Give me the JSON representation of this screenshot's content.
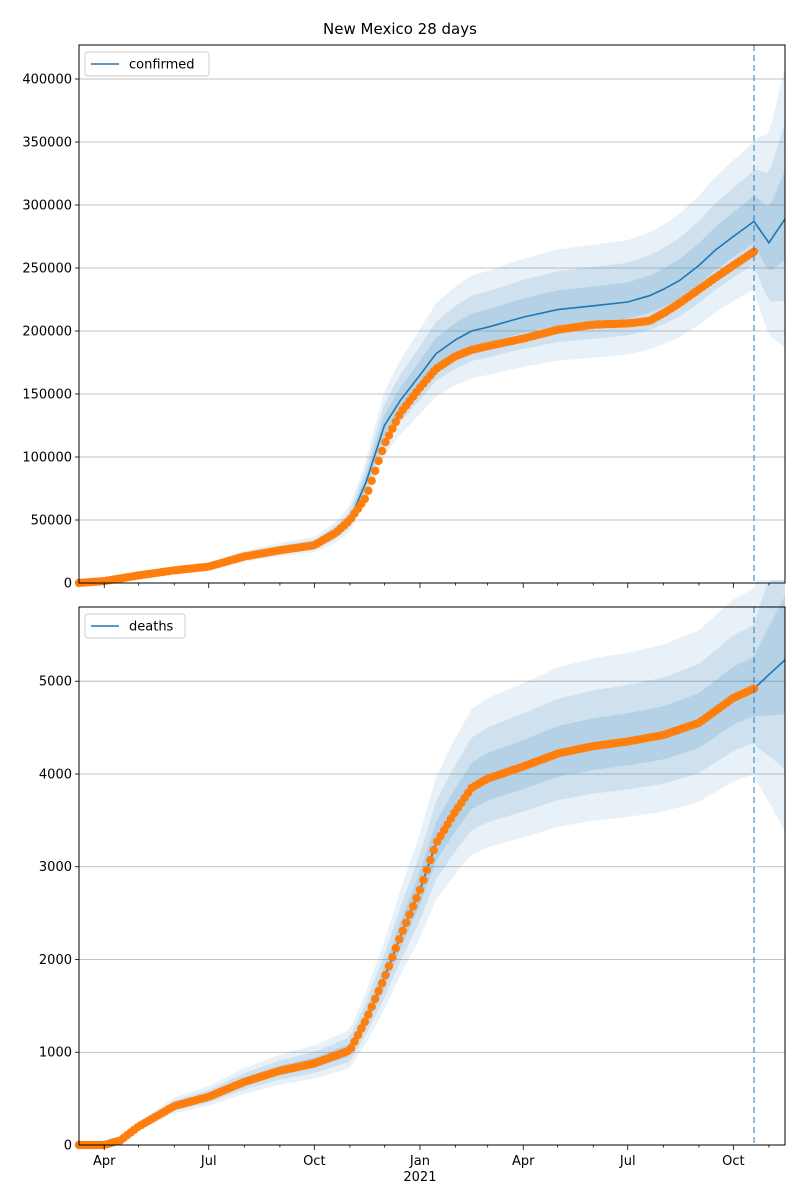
{
  "chart_data": [
    {
      "type": "line",
      "title": "New Mexico 28 days",
      "xlabel": "",
      "ylabel": "",
      "grid": "horizontal",
      "legend": "top-left",
      "ylim": [
        0,
        427000
      ],
      "yticks": [
        0,
        50000,
        100000,
        150000,
        200000,
        250000,
        300000,
        350000,
        400000
      ],
      "ytick_labels": [
        "0",
        "50000",
        "100000",
        "150000",
        "200000",
        "250000",
        "300000",
        "350000",
        "400000"
      ],
      "forecast_start": "2021-10-19",
      "series": [
        {
          "name": "confirmed",
          "kind": "model",
          "color": "#1f77b4",
          "x": [
            "2020-03-10",
            "2020-04-01",
            "2020-05-01",
            "2020-06-01",
            "2020-07-01",
            "2020-08-01",
            "2020-09-01",
            "2020-10-01",
            "2020-10-20",
            "2020-11-01",
            "2020-11-15",
            "2020-12-01",
            "2020-12-15",
            "2021-01-01",
            "2021-01-15",
            "2021-02-01",
            "2021-02-15",
            "2021-03-01",
            "2021-04-01",
            "2021-05-01",
            "2021-06-01",
            "2021-07-01",
            "2021-07-20",
            "2021-08-01",
            "2021-08-15",
            "2021-09-01",
            "2021-09-15",
            "2021-10-01",
            "2021-10-19",
            "2021-11-01",
            "2021-11-15"
          ],
          "y": [
            0,
            1500,
            6000,
            10000,
            13000,
            21000,
            26000,
            30000,
            40000,
            50000,
            80000,
            125000,
            145000,
            165000,
            182000,
            193000,
            200000,
            203000,
            211000,
            217000,
            220000,
            223000,
            228000,
            233000,
            240000,
            252000,
            264000,
            275000,
            287000,
            270000,
            289000
          ]
        },
        {
          "name": "",
          "kind": "observed",
          "color": "#ff7f0e",
          "x": [
            "2020-03-10",
            "2020-04-01",
            "2020-05-01",
            "2020-06-01",
            "2020-07-01",
            "2020-08-01",
            "2020-09-01",
            "2020-10-01",
            "2020-10-20",
            "2020-11-01",
            "2020-11-15",
            "2020-12-01",
            "2020-12-15",
            "2021-01-01",
            "2021-01-15",
            "2021-02-01",
            "2021-02-15",
            "2021-03-01",
            "2021-04-01",
            "2021-05-01",
            "2021-06-01",
            "2021-07-01",
            "2021-07-20",
            "2021-08-01",
            "2021-08-15",
            "2021-09-01",
            "2021-09-15",
            "2021-10-01",
            "2021-10-19"
          ],
          "y": [
            0,
            1500,
            6000,
            10000,
            13000,
            21000,
            26000,
            30000,
            40000,
            50000,
            68000,
            110000,
            135000,
            155000,
            170000,
            180000,
            185000,
            188000,
            194000,
            201000,
            205000,
            206000,
            208000,
            214000,
            222000,
            233000,
            242000,
            252000,
            263000
          ]
        }
      ]
    },
    {
      "type": "line",
      "title": "",
      "xlabel": "",
      "ylabel": "",
      "grid": "horizontal",
      "legend": "top-left",
      "ylim": [
        0,
        5800
      ],
      "yticks": [
        0,
        1000,
        2000,
        3000,
        4000,
        5000
      ],
      "ytick_labels": [
        "0",
        "1000",
        "2000",
        "3000",
        "4000",
        "5000"
      ],
      "xticks": [
        "2020-04-01",
        "2020-07-01",
        "2020-10-01",
        "2021-01-01",
        "2021-04-01",
        "2021-07-01",
        "2021-10-01"
      ],
      "xtick_labels": [
        "Apr",
        "Jul",
        "Oct",
        "Jan",
        "Apr",
        "Jul",
        "Oct"
      ],
      "xtick_year": {
        "under": "2021-01-01",
        "label": "2021"
      },
      "forecast_start": "2021-10-19",
      "series": [
        {
          "name": "deaths",
          "kind": "model",
          "color": "#1f77b4",
          "x": [
            "2020-03-10",
            "2020-04-01",
            "2020-04-15",
            "2020-05-01",
            "2020-06-01",
            "2020-07-01",
            "2020-08-01",
            "2020-09-01",
            "2020-10-01",
            "2020-11-01",
            "2020-11-15",
            "2020-12-01",
            "2020-12-15",
            "2021-01-01",
            "2021-01-15",
            "2021-02-01",
            "2021-02-15",
            "2021-03-01",
            "2021-04-01",
            "2021-05-01",
            "2021-06-01",
            "2021-07-01",
            "2021-08-01",
            "2021-09-01",
            "2021-10-01",
            "2021-10-19",
            "2021-11-01",
            "2021-11-15"
          ],
          "y": [
            0,
            0,
            50,
            200,
            420,
            520,
            680,
            800,
            880,
            1020,
            1350,
            1800,
            2250,
            2750,
            3250,
            3600,
            3850,
            3950,
            4080,
            4220,
            4300,
            4350,
            4420,
            4550,
            4820,
            4920,
            5070,
            5230
          ]
        },
        {
          "name": "",
          "kind": "observed",
          "color": "#ff7f0e",
          "x": [
            "2020-03-10",
            "2020-04-01",
            "2020-04-15",
            "2020-05-01",
            "2020-06-01",
            "2020-07-01",
            "2020-08-01",
            "2020-09-01",
            "2020-10-01",
            "2020-11-01",
            "2020-11-15",
            "2020-12-01",
            "2020-12-15",
            "2021-01-01",
            "2021-01-15",
            "2021-02-01",
            "2021-02-15",
            "2021-03-01",
            "2021-04-01",
            "2021-05-01",
            "2021-06-01",
            "2021-07-01",
            "2021-08-01",
            "2021-09-01",
            "2021-10-01",
            "2021-10-19"
          ],
          "y": [
            0,
            0,
            50,
            200,
            420,
            520,
            680,
            800,
            880,
            1020,
            1350,
            1800,
            2250,
            2750,
            3250,
            3600,
            3850,
            3950,
            4080,
            4220,
            4300,
            4350,
            4420,
            4550,
            4820,
            4920
          ]
        }
      ]
    }
  ]
}
